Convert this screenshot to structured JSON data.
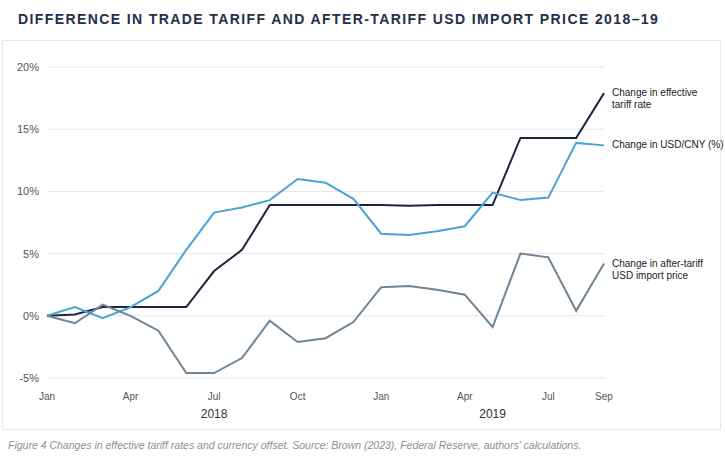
{
  "chart_data": {
    "type": "line",
    "title": "DIFFERENCE IN TRADE TARIFF AND AFTER-TARIFF USD IMPORT PRICE 2018–19",
    "caption": "Figure 4 Changes in effective tariff rates and currency offset. Source: Brown (2023), Federal Reserve, authors' calculations.",
    "categories": [
      "Jan",
      null,
      null,
      "Apr",
      null,
      null,
      "Jul",
      null,
      null,
      "Oct",
      null,
      null,
      "Jan",
      null,
      null,
      "Apr",
      null,
      null,
      "Jul",
      null,
      "Sep"
    ],
    "groups": [
      {
        "label": "2018",
        "count": 12
      },
      {
        "label": "2019",
        "count": 9
      }
    ],
    "series": [
      {
        "name": "Change in effective tariff rate",
        "color": "#1c2640",
        "values": [
          0,
          0.1,
          0.7,
          0.7,
          0.7,
          0.7,
          3.6,
          5.3,
          8.9,
          8.9,
          8.9,
          8.9,
          8.9,
          8.85,
          8.9,
          8.9,
          8.9,
          14.3,
          14.3,
          14.3,
          17.9
        ]
      },
      {
        "name": "Change in USD/CNY (%)",
        "color": "#4aa3d4",
        "values": [
          0,
          0.7,
          -0.2,
          0.7,
          2.0,
          5.3,
          8.3,
          8.7,
          9.3,
          11.0,
          10.7,
          9.4,
          6.6,
          6.5,
          6.8,
          7.2,
          9.9,
          9.3,
          9.5,
          13.9,
          13.7
        ]
      },
      {
        "name": "Change in after-tariff USD import price",
        "color": "#6f8494",
        "values": [
          0,
          -0.6,
          0.9,
          0.0,
          -1.2,
          -4.6,
          -4.6,
          -3.4,
          -0.4,
          -2.1,
          -1.8,
          -0.5,
          2.3,
          2.4,
          2.1,
          1.7,
          -0.9,
          5.0,
          4.7,
          0.4,
          4.2
        ]
      }
    ],
    "ylim": [
      -5,
      20
    ],
    "yticks": [
      {
        "value": -5,
        "label": "-5%"
      },
      {
        "value": 0,
        "label": "0%"
      },
      {
        "value": 5,
        "label": "5%"
      },
      {
        "value": 10,
        "label": "10%"
      },
      {
        "value": 15,
        "label": "15%"
      },
      {
        "value": 20,
        "label": "20%"
      }
    ],
    "grid": true
  }
}
